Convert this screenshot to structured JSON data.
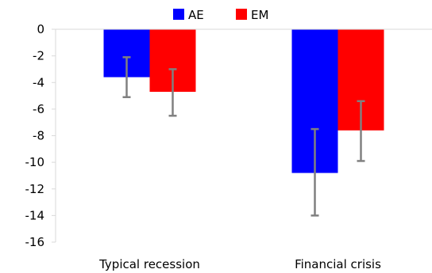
{
  "chart_data": {
    "type": "bar",
    "categories": [
      "Typical recession",
      "Financial crisis"
    ],
    "series": [
      {
        "name": "AE",
        "color": "#0000ff",
        "values": [
          -3.6,
          -10.8
        ],
        "error_low": [
          -5.1,
          -14.0
        ],
        "error_high": [
          -2.1,
          -7.5
        ]
      },
      {
        "name": "EM",
        "color": "#ff0000",
        "values": [
          -4.7,
          -7.6
        ],
        "error_low": [
          -6.5,
          -9.9
        ],
        "error_high": [
          -3.0,
          -5.4
        ]
      }
    ],
    "ylim": [
      -16,
      0
    ],
    "yticks": [
      0,
      -2,
      -4,
      -6,
      -8,
      -10,
      -12,
      -14,
      -16
    ],
    "ytick_labels": [
      "0",
      "-2",
      "-4",
      "-6",
      "-8",
      "-10",
      "-12",
      "-14",
      "-16"
    ],
    "legend_position": "top-center",
    "grid": false,
    "error_bar_color": "#808080",
    "axis_color": "#d9d9d9"
  }
}
